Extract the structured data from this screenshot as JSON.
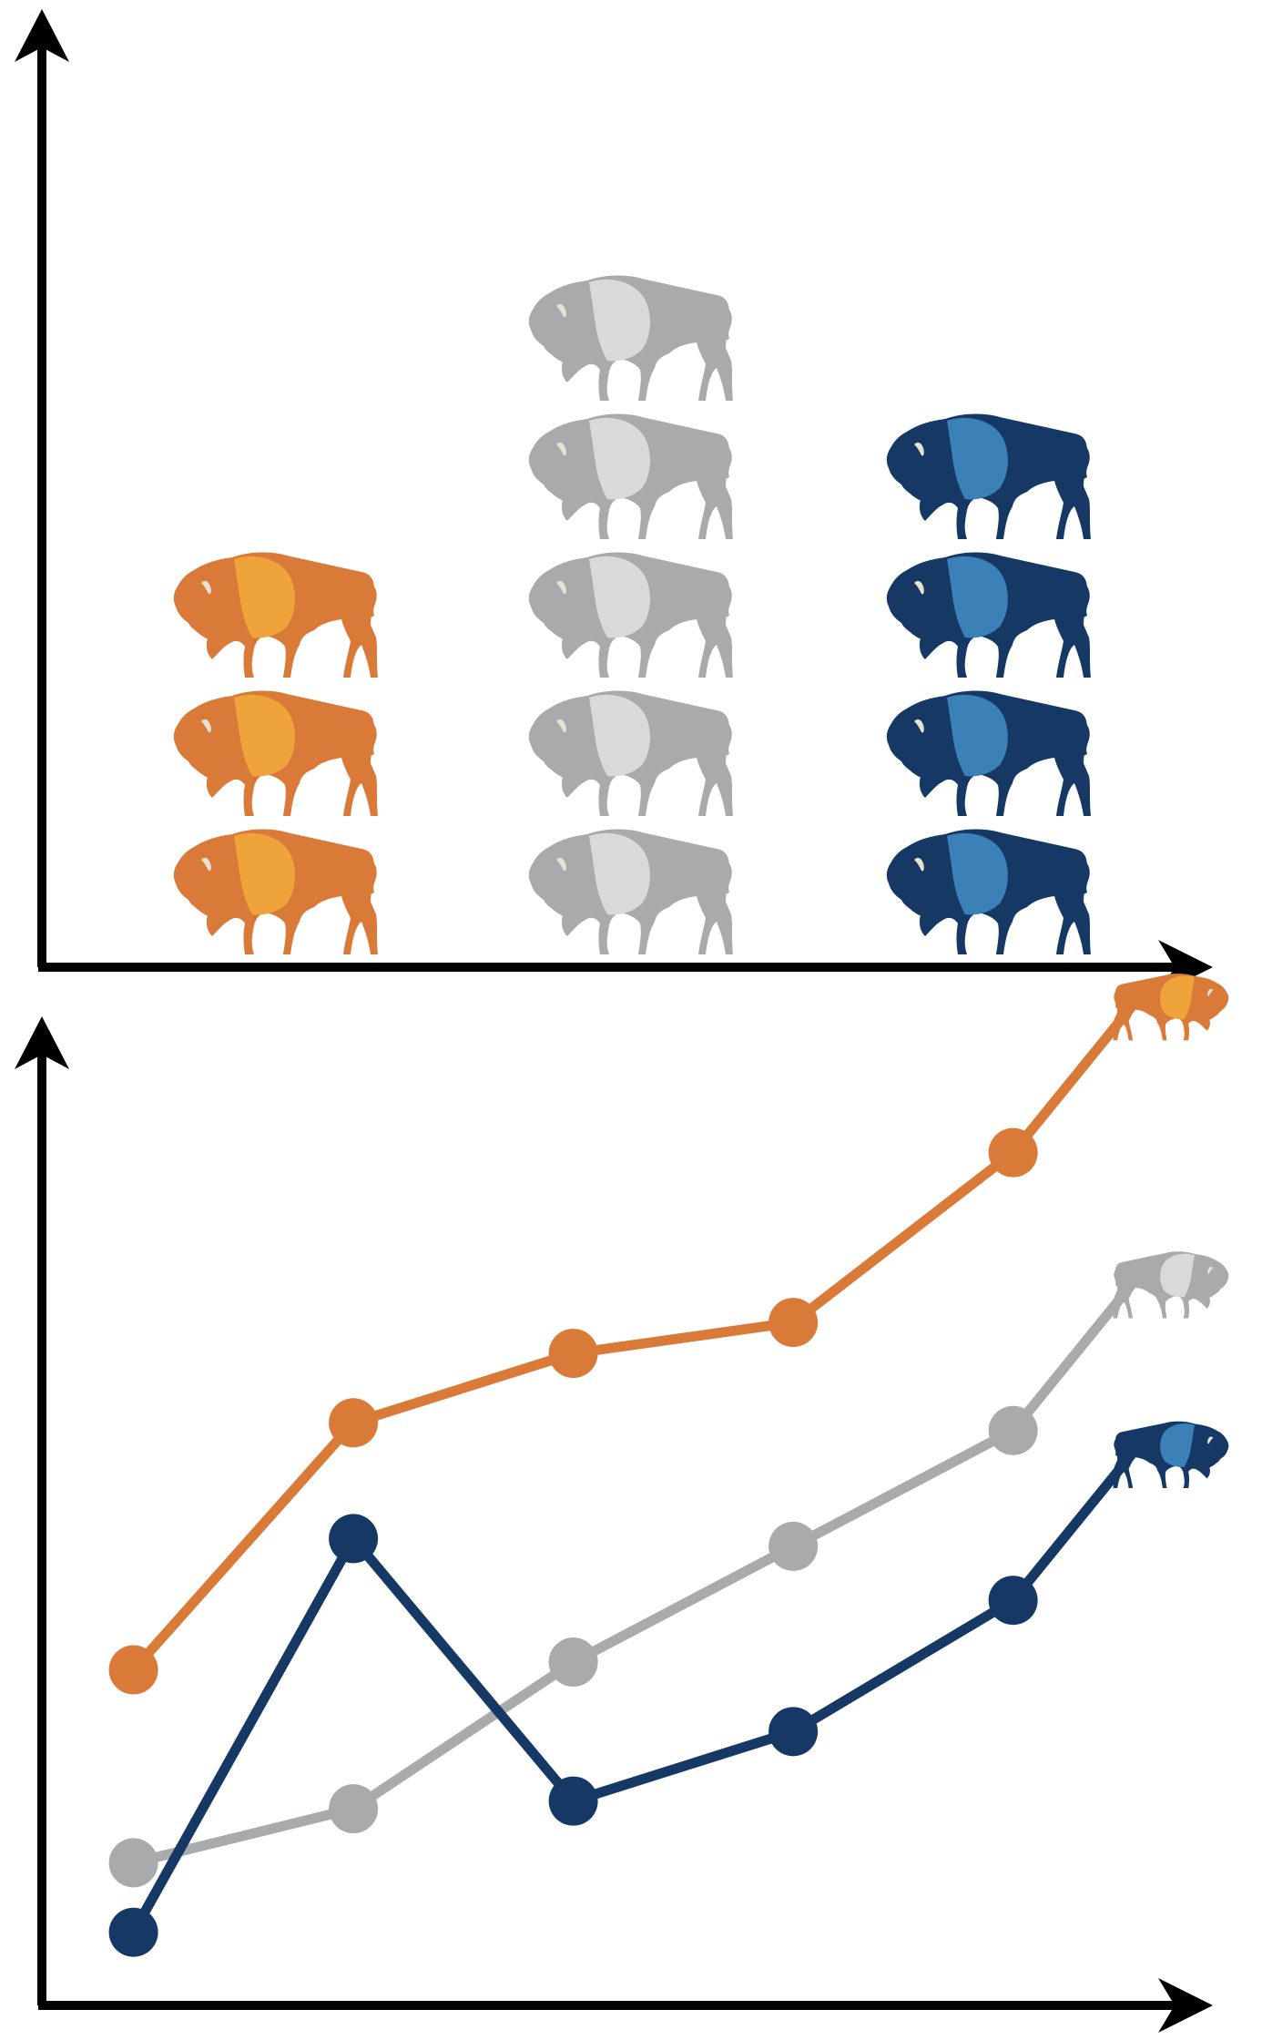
{
  "colors": {
    "axis": "#000000",
    "orange_dark": "#DA7A38",
    "orange_light": "#EFA43B",
    "gray_dark": "#A9AAAC",
    "gray_light": "#D9D9D9",
    "blue_dark": "#163864",
    "blue_light": "#3B80B7",
    "horn": "#E8E1D3"
  },
  "icon_name": "bison-icon",
  "chart_data": [
    {
      "type": "bar",
      "mark": "pictogram",
      "icon": "bison-icon",
      "categories": [
        "",
        "",
        ""
      ],
      "series": [
        {
          "values": [
            3,
            5,
            4
          ]
        }
      ],
      "colors": [
        "orange",
        "gray",
        "blue"
      ],
      "title": "",
      "xlabel": "",
      "ylabel": "",
      "ylim": [
        0,
        7
      ],
      "grid": false
    },
    {
      "type": "line",
      "x": [
        1,
        2,
        3,
        4,
        5
      ],
      "series": [
        {
          "color": "orange",
          "values": [
            2.5,
            5.7,
            6.6,
            7.0,
            9.2
          ]
        },
        {
          "color": "gray",
          "values": [
            0.0,
            0.7,
            2.6,
            4.1,
            5.6
          ]
        },
        {
          "color": "blue",
          "values": [
            -0.9,
            4.2,
            0.8,
            1.7,
            3.4
          ]
        }
      ],
      "end_marker_icon": "bison-icon",
      "title": "",
      "xlabel": "",
      "ylabel": "",
      "xlim": [
        0.6,
        5.9
      ],
      "ylim": [
        -1.8,
        10.8
      ],
      "grid": false
    }
  ]
}
